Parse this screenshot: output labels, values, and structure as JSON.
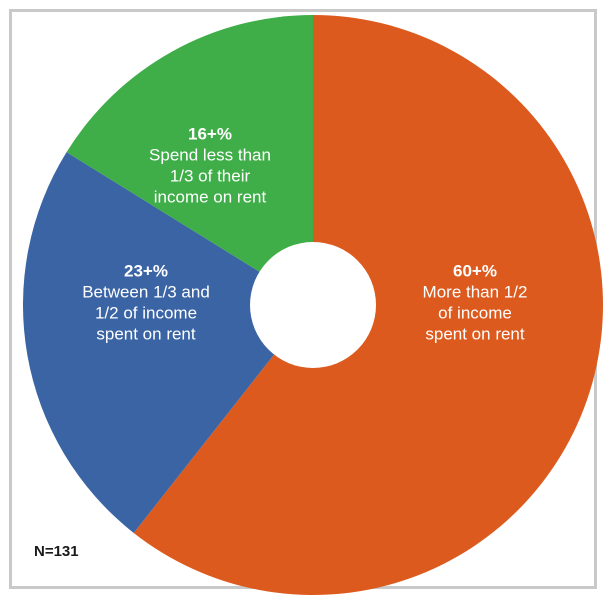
{
  "chart_data": {
    "type": "pie",
    "donut": true,
    "slices": [
      {
        "value": 60,
        "pct_label": "60+%",
        "desc_lines": [
          "More than 1/2",
          "of income",
          "spent on rent"
        ],
        "color": "#dc5a1e"
      },
      {
        "value": 23,
        "pct_label": "23+%",
        "desc_lines": [
          "Between 1/3 and",
          "1/2 of income",
          "spent on rent"
        ],
        "color": "#3a64a4"
      },
      {
        "value": 16,
        "pct_label": "16+%",
        "desc_lines": [
          "Spend less than",
          "1/3 of their",
          "income on rent"
        ],
        "color": "#3fae48"
      }
    ],
    "note": "N=131"
  }
}
